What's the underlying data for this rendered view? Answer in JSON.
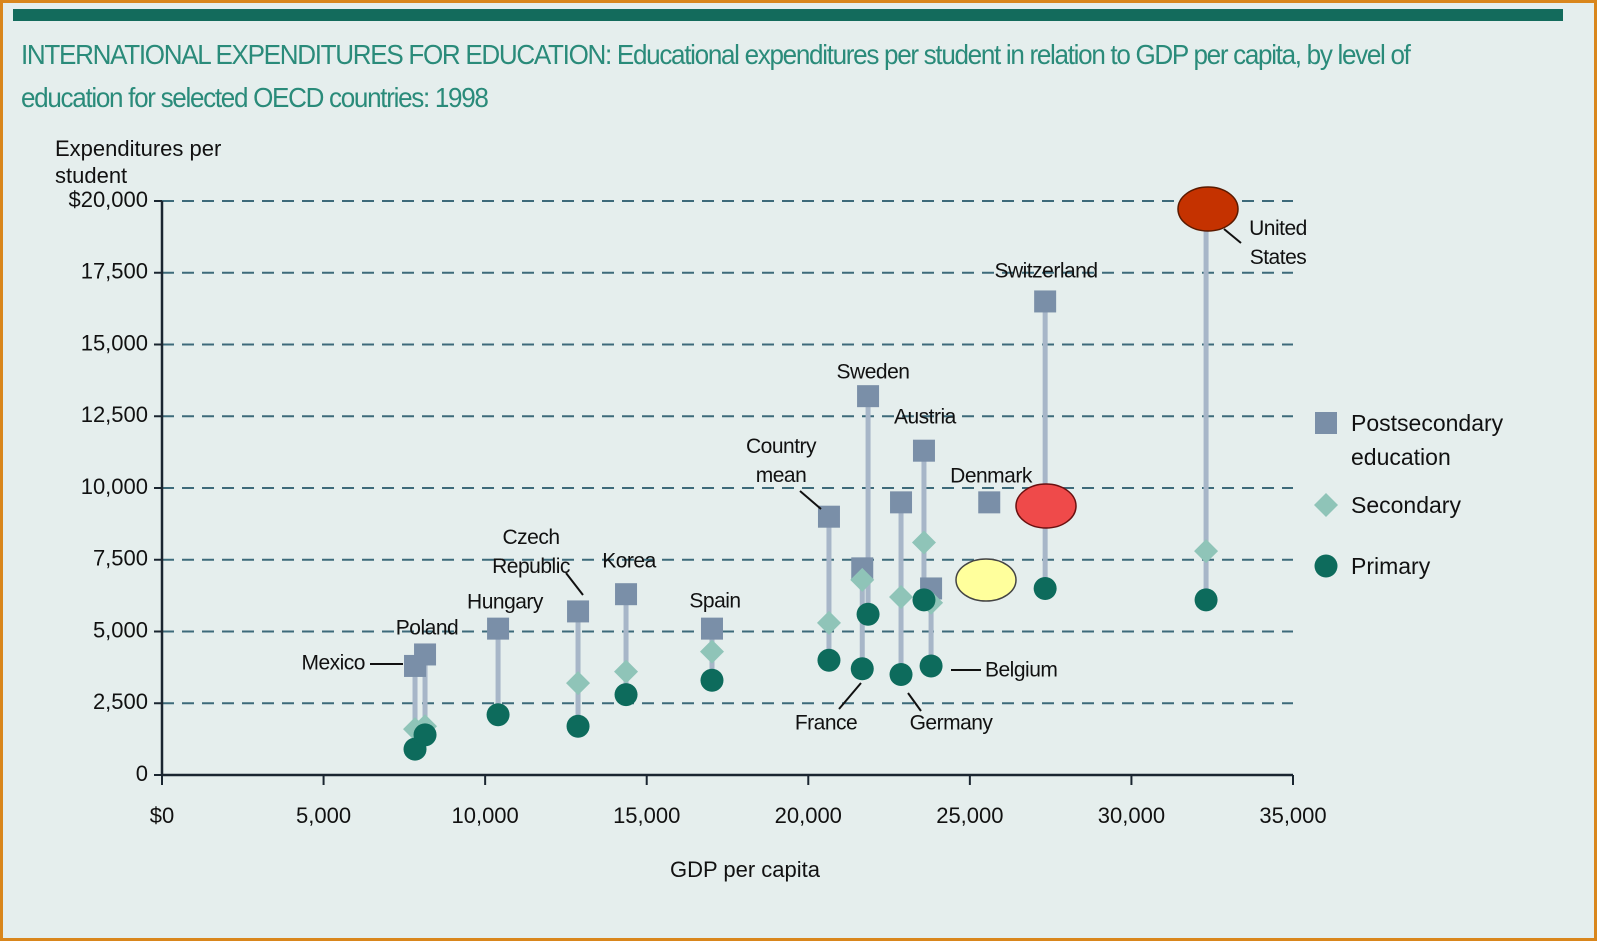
{
  "chart_data": {
    "type": "scatter",
    "title": "INTERNATIONAL EXPENDITURES FOR EDUCATION:  Educational expenditures per student in relation to GDP per capita, by level of education for selected OECD countries: 1998",
    "y_label": "Expenditures per student",
    "x_label": "GDP per capita",
    "categories": [
      "Mexico",
      "Poland",
      "Hungary",
      "Czech Republic",
      "Korea",
      "Spain",
      "Country mean",
      "France",
      "Sweden",
      "Germany",
      "Austria",
      "Belgium",
      "Denmark",
      "Switzerland",
      "United States"
    ],
    "x": [
      7830,
      8140,
      10400,
      12875,
      14360,
      17020,
      20640,
      21670,
      21850,
      22870,
      23580,
      23800,
      25600,
      27330,
      32310
    ],
    "series": [
      {
        "name": "Postsecondary education",
        "color": "#7a8fa8",
        "marker": "square",
        "values": [
          3800,
          4200,
          5100,
          5700,
          6300,
          5100,
          9000,
          7200,
          13200,
          9500,
          11300,
          6500,
          9500,
          16500,
          19800
        ]
      },
      {
        "name": "Secondary",
        "color": "#8fc4b8",
        "marker": "diamond",
        "values": [
          1600,
          1700,
          null,
          3200,
          3600,
          4300,
          5300,
          6800,
          null,
          6200,
          8100,
          6000,
          null,
          null,
          7800
        ]
      },
      {
        "name": "Primary",
        "color": "#0d6b5c",
        "marker": "circle",
        "values": [
          900,
          1400,
          2100,
          1700,
          2800,
          3300,
          4000,
          3700,
          5600,
          3500,
          6100,
          3800,
          null,
          6500,
          6100
        ]
      }
    ],
    "xlim": [
      0,
      35000
    ],
    "xticks": [
      {
        "value": 0,
        "label": "$0"
      },
      {
        "value": 5000,
        "label": "5,000"
      },
      {
        "value": 10000,
        "label": "10,000"
      },
      {
        "value": 15000,
        "label": "15,000"
      },
      {
        "value": 20000,
        "label": "20,000"
      },
      {
        "value": 25000,
        "label": "25,000"
      },
      {
        "value": 30000,
        "label": "30,000"
      },
      {
        "value": 35000,
        "label": "35,000"
      }
    ],
    "ylim": [
      0,
      20000
    ],
    "yticks": [
      0,
      {
        "value": 2500,
        "label": "2,500"
      },
      {
        "value": 5000,
        "label": "5,000"
      },
      {
        "value": 7500,
        "label": "7,500"
      },
      {
        "value": 10000,
        "label": "10,000"
      },
      {
        "value": 12500,
        "label": "12,500"
      },
      {
        "value": 15000,
        "label": "15,000"
      },
      {
        "value": 17500,
        "label": "17,500"
      },
      {
        "value": 20000,
        "label": "$20,000"
      }
    ],
    "grid": true,
    "legend": "right"
  }
}
